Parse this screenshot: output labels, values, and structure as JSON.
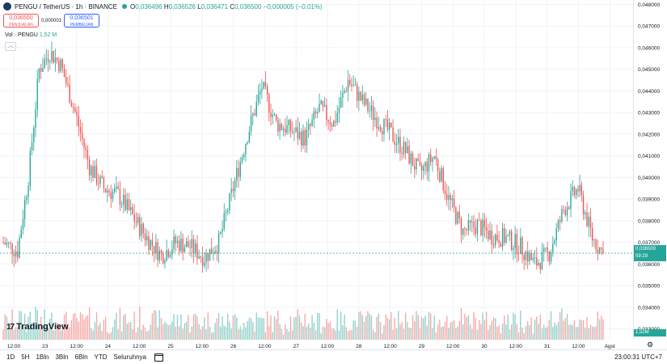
{
  "header": {
    "symbol": "PENGU / TetherUS · 1h · BINANCE",
    "ohlc": {
      "o_label": "O",
      "o": "0,036496",
      "h_label": "H",
      "h": "0,036526",
      "l_label": "L",
      "l": "0,036471",
      "c_label": "C",
      "c": "0,036500",
      "change": "−0,000005 (−0,01%)"
    },
    "sell_price": "0,036500",
    "sell_label": "PENJUALAN",
    "spread": "0,000001",
    "buy_price": "0,036501",
    "buy_label": "PEMBELIAN",
    "volume_label": "Vol · PENGU",
    "volume_value": "1,52 M"
  },
  "logo": {
    "mark": "17",
    "text": "TradingView"
  },
  "price_axis": {
    "ticks": [
      "0,048000",
      "0,047000",
      "0,046000",
      "0,045000",
      "0,044000",
      "0,043000",
      "0,042000",
      "0,041000",
      "0,040000",
      "0,039000",
      "0,038000",
      "0,037000",
      "0,036000",
      "0,035000",
      "0,034000",
      "0,033000"
    ],
    "current_price": "0,036500",
    "countdown": "59:29",
    "volume_tag": "1,52M"
  },
  "time_axis": {
    "ticks": [
      "12:00",
      "23",
      "12:00",
      "24",
      "12:00",
      "25",
      "12:00",
      "26",
      "12:00",
      "27",
      "12:00",
      "28",
      "12:00",
      "29",
      "12:00",
      "30",
      "12:00",
      "31",
      "12:00",
      "Agst"
    ]
  },
  "bottom_bar": {
    "ranges": [
      "1D",
      "5H",
      "1Bln",
      "3Bln",
      "6Bln",
      "YTD",
      "Seluruhnya"
    ],
    "clock": "23:00:31 UTC+7"
  },
  "colors": {
    "up": "#26a69a",
    "down": "#ef5350",
    "up_vol": "#92d2cc",
    "down_vol": "#f7a9a7"
  },
  "chart_data": {
    "type": "candlestick",
    "price_range": [
      0.0325,
      0.0482
    ],
    "close_anchors": [
      {
        "hour": 0,
        "close": 0.037
      },
      {
        "hour": 8,
        "close": 0.0366
      },
      {
        "hour": 14,
        "close": 0.04
      },
      {
        "hour": 20,
        "close": 0.045
      },
      {
        "hour": 26,
        "close": 0.0458
      },
      {
        "hour": 32,
        "close": 0.0452
      },
      {
        "hour": 40,
        "close": 0.043
      },
      {
        "hour": 48,
        "close": 0.0405
      },
      {
        "hour": 56,
        "close": 0.0395
      },
      {
        "hour": 64,
        "close": 0.0392
      },
      {
        "hour": 72,
        "close": 0.0382
      },
      {
        "hour": 80,
        "close": 0.0372
      },
      {
        "hour": 88,
        "close": 0.0364
      },
      {
        "hour": 96,
        "close": 0.037
      },
      {
        "hour": 104,
        "close": 0.0368
      },
      {
        "hour": 112,
        "close": 0.0363
      },
      {
        "hour": 120,
        "close": 0.037
      },
      {
        "hour": 128,
        "close": 0.0395
      },
      {
        "hour": 136,
        "close": 0.042
      },
      {
        "hour": 144,
        "close": 0.0442
      },
      {
        "hour": 152,
        "close": 0.0425
      },
      {
        "hour": 160,
        "close": 0.0422
      },
      {
        "hour": 168,
        "close": 0.0418
      },
      {
        "hour": 176,
        "close": 0.0432
      },
      {
        "hour": 184,
        "close": 0.0425
      },
      {
        "hour": 192,
        "close": 0.0445
      },
      {
        "hour": 200,
        "close": 0.0435
      },
      {
        "hour": 208,
        "close": 0.0427
      },
      {
        "hour": 216,
        "close": 0.042
      },
      {
        "hour": 224,
        "close": 0.0412
      },
      {
        "hour": 232,
        "close": 0.0402
      },
      {
        "hour": 240,
        "close": 0.041
      },
      {
        "hour": 248,
        "close": 0.039
      },
      {
        "hour": 256,
        "close": 0.0375
      },
      {
        "hour": 264,
        "close": 0.0378
      },
      {
        "hour": 272,
        "close": 0.0373
      },
      {
        "hour": 280,
        "close": 0.0372
      },
      {
        "hour": 288,
        "close": 0.0368
      },
      {
        "hour": 296,
        "close": 0.036
      },
      {
        "hour": 304,
        "close": 0.0365
      },
      {
        "hour": 312,
        "close": 0.0385
      },
      {
        "hour": 320,
        "close": 0.0395
      },
      {
        "hour": 328,
        "close": 0.0372
      },
      {
        "hour": 334,
        "close": 0.0365
      }
    ]
  }
}
